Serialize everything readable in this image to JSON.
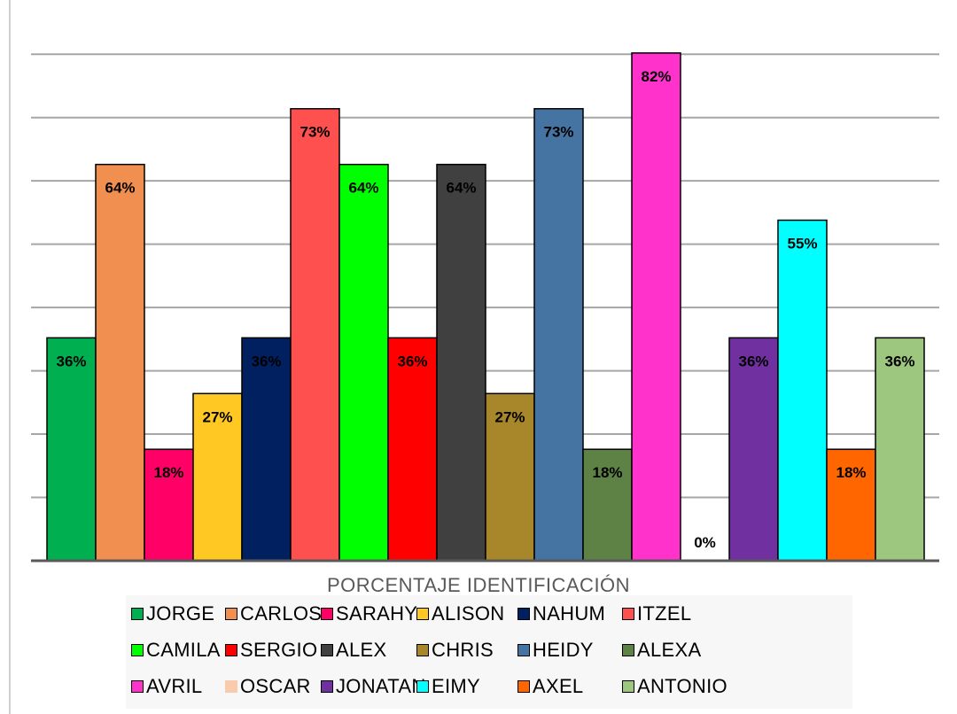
{
  "chart_data": {
    "type": "bar",
    "title": "",
    "xlabel": "PORCENTAJE IDENTIFICACIÓN",
    "ylabel": "",
    "ylim": [
      0,
      81.8
    ],
    "grid": true,
    "legend_position": "bottom",
    "series": [
      {
        "name": "JORGE",
        "value": 36,
        "label": "36%",
        "color": "#00b050"
      },
      {
        "name": "CARLOS",
        "value": 64,
        "label": "64%",
        "color": "#f08f4f"
      },
      {
        "name": "SARAHY",
        "value": 18,
        "label": "18%",
        "color": "#ff0066"
      },
      {
        "name": "ALISON",
        "value": 27,
        "label": "27%",
        "color": "#ffc823"
      },
      {
        "name": "NAHUM",
        "value": 36,
        "label": "36%",
        "color": "#002060"
      },
      {
        "name": "ITZEL",
        "value": 73,
        "label": "73%",
        "color": "#ff5050"
      },
      {
        "name": "CAMILA",
        "value": 64,
        "label": "64%",
        "color": "#00ff00"
      },
      {
        "name": "SERGIO",
        "value": 36,
        "label": "36%",
        "color": "#ff0000"
      },
      {
        "name": "ALEX",
        "value": 64,
        "label": "64%",
        "color": "#404040"
      },
      {
        "name": "CHRIS",
        "value": 27,
        "label": "27%",
        "color": "#a8862a"
      },
      {
        "name": "HEIDY",
        "value": 73,
        "label": "73%",
        "color": "#4674a2"
      },
      {
        "name": "ALEXA",
        "value": 18,
        "label": "18%",
        "color": "#5e8146"
      },
      {
        "name": "AVRIL",
        "value": 82,
        "label": "82%",
        "color": "#ff33cc"
      },
      {
        "name": "OSCAR",
        "value": 0,
        "label": "0%",
        "color": "#f8cbad"
      },
      {
        "name": "JONATAN",
        "value": 36,
        "label": "36%",
        "color": "#7030a0"
      },
      {
        "name": "EIMY",
        "value": 55,
        "label": "55%",
        "color": "#00ffff"
      },
      {
        "name": "AXEL",
        "value": 18,
        "label": "18%",
        "color": "#ff6600"
      },
      {
        "name": "ANTONIO",
        "value": 36,
        "label": "36%",
        "color": "#9dc67f"
      }
    ]
  }
}
